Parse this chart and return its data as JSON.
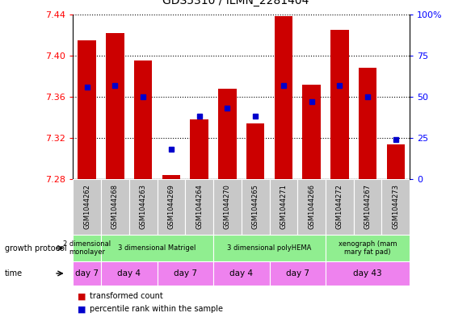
{
  "title": "GDS5310 / ILMN_2281404",
  "samples": [
    "GSM1044262",
    "GSM1044268",
    "GSM1044263",
    "GSM1044269",
    "GSM1044264",
    "GSM1044270",
    "GSM1044265",
    "GSM1044271",
    "GSM1044266",
    "GSM1044272",
    "GSM1044267",
    "GSM1044273"
  ],
  "transformed_count": [
    7.415,
    7.422,
    7.395,
    7.284,
    7.338,
    7.368,
    7.334,
    7.438,
    7.372,
    7.425,
    7.388,
    7.314
  ],
  "percentile_rank": [
    56,
    57,
    50,
    18,
    38,
    43,
    38,
    57,
    47,
    57,
    50,
    24
  ],
  "y_min": 7.28,
  "y_max": 7.44,
  "y_ticks": [
    7.28,
    7.32,
    7.36,
    7.4,
    7.44
  ],
  "right_y_ticks": [
    0,
    25,
    50,
    75,
    100
  ],
  "bar_color": "#cc0000",
  "dot_color": "#0000cc",
  "growth_protocol_groups": [
    {
      "label": "2 dimensional\nmonolayer",
      "start": 0,
      "end": 1
    },
    {
      "label": "3 dimensional Matrigel",
      "start": 1,
      "end": 5
    },
    {
      "label": "3 dimensional polyHEMA",
      "start": 5,
      "end": 9
    },
    {
      "label": "xenograph (mam\nmary fat pad)",
      "start": 9,
      "end": 12
    }
  ],
  "time_groups": [
    {
      "label": "day 7",
      "start": 0,
      "end": 1
    },
    {
      "label": "day 4",
      "start": 1,
      "end": 3
    },
    {
      "label": "day 7",
      "start": 3,
      "end": 5
    },
    {
      "label": "day 4",
      "start": 5,
      "end": 7
    },
    {
      "label": "day 7",
      "start": 7,
      "end": 9
    },
    {
      "label": "day 43",
      "start": 9,
      "end": 12
    }
  ],
  "sample_bg_color": "#c8c8c8",
  "gp_color": "#90EE90",
  "time_color": "#EE82EE",
  "border_color": "#888888",
  "left_label_gp": "growth protocol",
  "left_label_time": "time",
  "legend_bar_label": "transformed count",
  "legend_dot_label": "percentile rank within the sample"
}
